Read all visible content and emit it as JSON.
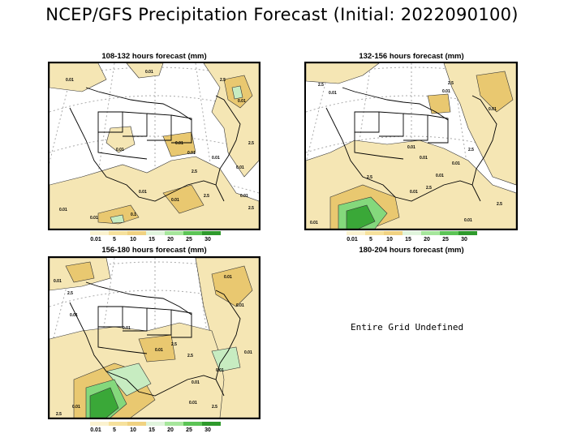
{
  "title": "NCEP/GFS Precipitation Forecast (Initial: 2022090100)",
  "colors": {
    "light": "#f5e6b4",
    "tan": "#e9c870",
    "lightgreen": "#c7ecc1",
    "green": "#84d87c",
    "darkgreen": "#3aa838",
    "ocean": "#ffffff"
  },
  "legend": {
    "labels": [
      "0.01",
      "5",
      "10",
      "15",
      "20",
      "25",
      "30"
    ],
    "colors": [
      "#fbf2cf",
      "#f6e19c",
      "#f0d281",
      "#e0f4dc",
      "#a6e69c",
      "#5cc456",
      "#2e9a2c"
    ]
  },
  "panels": [
    {
      "title": "108-132 hours forecast (mm)",
      "contour_labels": [
        "0.01",
        "0.01",
        "2.5",
        "0.01",
        "2.5",
        "0.01",
        "0.01",
        "0.01",
        "0.01",
        "2.5",
        "0.01",
        "2.5",
        "0.01",
        "0.01",
        "0.01",
        "0.1",
        "2.5",
        "0.01",
        "0.01"
      ]
    },
    {
      "title": "132-156 hours forecast (mm)",
      "contour_labels": [
        "2.5",
        "0.01",
        "2.5",
        "0.01",
        "0.01",
        "0.01",
        "2.5",
        "2.5",
        "0.01",
        "0.01",
        "0.01",
        "2.5",
        "0.01",
        "2.5",
        "0.01",
        "0.01"
      ]
    },
    {
      "title": "156-180 hours forecast (mm)",
      "contour_labels": [
        "0.01",
        "2.5",
        "0.01",
        "0.01",
        "0.01",
        "0.01",
        "2.5",
        "0.01",
        "2.5",
        "0.01",
        "0.01",
        "0.01",
        "0.01",
        "2.5",
        "0.01",
        "2.5"
      ]
    },
    {
      "title": "180-204 hours forecast (mm)",
      "note": "Entire Grid Undefined"
    }
  ]
}
